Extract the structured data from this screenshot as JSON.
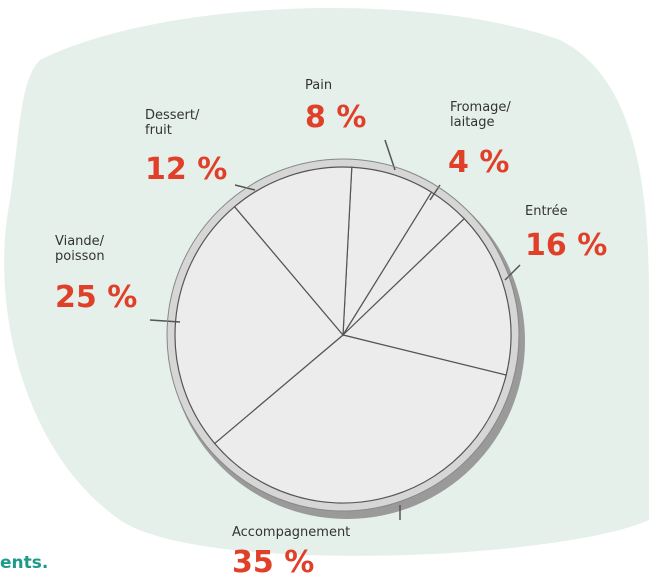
{
  "chart_data": {
    "type": "pie",
    "categories": [
      "Pain",
      "Fromage/ laitage",
      "Entrée",
      "Accompagnement",
      "Viande/ poisson",
      "Dessert/ fruit"
    ],
    "values": [
      8,
      4,
      16,
      35,
      25,
      12
    ],
    "value_labels": [
      "8 %",
      "4 %",
      "16 %",
      "35 %",
      "25 %",
      "12 %"
    ],
    "color": "#ececec",
    "label_color": "#e0402a"
  },
  "footer_text": "ents."
}
